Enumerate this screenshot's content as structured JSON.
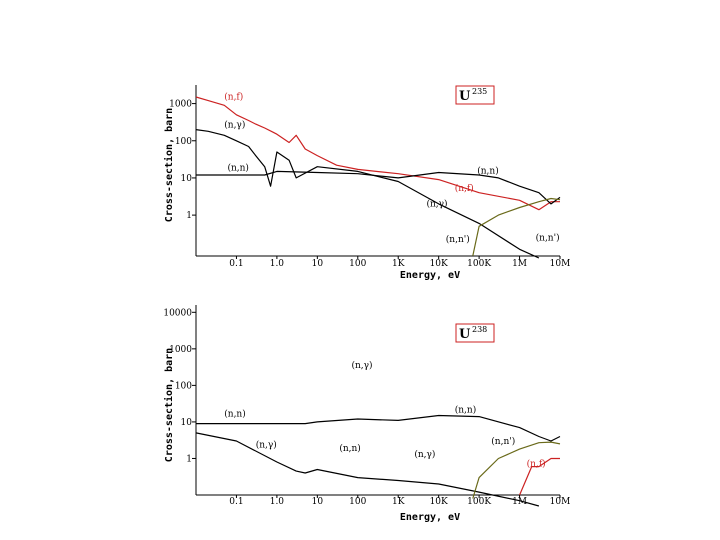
{
  "chart_data": [
    {
      "type": "line",
      "isotope": "U",
      "isotope_mass": "235",
      "xlabel": "Energy, eV",
      "ylabel": "Cross-section, barn",
      "x_scale": "log",
      "y_scale": "log",
      "x_ticks": [
        "0.1",
        "1.0",
        "10",
        "100",
        "1K",
        "10K",
        "100K",
        "1M",
        "10M"
      ],
      "y_ticks": [
        "1000",
        "100",
        "10",
        "1"
      ],
      "annotations": [
        {
          "text": "(n,f)",
          "color": "#cc2222",
          "e": 0.05,
          "s": 1300
        },
        {
          "text": "(n,γ)",
          "color": "#000000",
          "e": 0.05,
          "s": 230
        },
        {
          "text": "(n,n)",
          "color": "#000000",
          "e": 0.06,
          "s": 16
        },
        {
          "text": "(n,n)",
          "color": "#000000",
          "e": 90000,
          "s": 13
        },
        {
          "text": "(n,f)",
          "color": "#cc2222",
          "e": 25000,
          "s": 4.5
        },
        {
          "text": "(n,γ)",
          "color": "#000000",
          "e": 5000,
          "s": 1.7
        },
        {
          "text": "(n,n')",
          "color": "#000000",
          "e": 15000,
          "s": 0.19
        },
        {
          "text": "(n,n')",
          "color": "#000000",
          "e": 2500000,
          "s": 0.21
        }
      ],
      "series": [
        {
          "color": "#cc2222",
          "points": [
            [
              0.01,
              1500
            ],
            [
              0.02,
              1200
            ],
            [
              0.05,
              900
            ],
            [
              0.1,
              500
            ],
            [
              0.2,
              350
            ],
            [
              0.3,
              280
            ],
            [
              0.5,
              220
            ],
            [
              0.8,
              170
            ],
            [
              1,
              150
            ],
            [
              2,
              90
            ],
            [
              3,
              140
            ],
            [
              5,
              60
            ],
            [
              10,
              40
            ],
            [
              30,
              22
            ],
            [
              100,
              17
            ],
            [
              1000,
              13
            ],
            [
              10000,
              9
            ],
            [
              100000,
              4
            ],
            [
              1000000,
              2.5
            ],
            [
              3000000,
              1.4
            ],
            [
              6000000,
              2.3
            ],
            [
              10000000,
              2.3
            ]
          ]
        },
        {
          "color": "#000000",
          "points": [
            [
              0.01,
              200
            ],
            [
              0.02,
              180
            ],
            [
              0.05,
              140
            ],
            [
              0.1,
              100
            ],
            [
              0.2,
              70
            ],
            [
              0.3,
              40
            ],
            [
              0.5,
              20
            ],
            [
              0.7,
              6
            ],
            [
              1,
              50
            ],
            [
              2,
              30
            ],
            [
              3,
              10
            ],
            [
              10,
              20
            ],
            [
              100,
              15
            ],
            [
              1000,
              8
            ],
            [
              10000,
              2
            ],
            [
              100000,
              0.6
            ],
            [
              1000000,
              0.12
            ],
            [
              3000000,
              0.07
            ]
          ]
        },
        {
          "color": "#000000",
          "points": [
            [
              0.01,
              12
            ],
            [
              0.5,
              12
            ],
            [
              1,
              15
            ],
            [
              10,
              14
            ],
            [
              100,
              13
            ],
            [
              1000,
              10
            ],
            [
              10000,
              14
            ],
            [
              100000,
              12
            ],
            [
              300000,
              10
            ],
            [
              1000000,
              6
            ],
            [
              3000000,
              4
            ],
            [
              6000000,
              2
            ],
            [
              10000000,
              3
            ]
          ]
        },
        {
          "color": "#6a6a1a",
          "points": [
            [
              70000,
              0.08
            ],
            [
              100000,
              0.5
            ],
            [
              300000,
              1
            ],
            [
              1000000,
              1.6
            ],
            [
              3000000,
              2.3
            ],
            [
              6000000,
              2.8
            ],
            [
              10000000,
              2.6
            ]
          ]
        }
      ]
    },
    {
      "type": "line",
      "isotope": "U",
      "isotope_mass": "238",
      "xlabel": "Energy, eV",
      "ylabel": "Cross-section, barn",
      "x_scale": "log",
      "y_scale": "log",
      "x_ticks": [
        "0.1",
        "1.0",
        "10",
        "100",
        "1K",
        "10K",
        "100K",
        "1M",
        "10M"
      ],
      "y_ticks": [
        "10000",
        "1000",
        "100",
        "10",
        "1"
      ],
      "annotations": [
        {
          "text": "(n,γ)",
          "color": "#000000",
          "e": 70,
          "s": 300
        },
        {
          "text": "(n,n)",
          "color": "#000000",
          "e": 0.05,
          "s": 14
        },
        {
          "text": "(n,n)",
          "color": "#000000",
          "e": 25000,
          "s": 18
        },
        {
          "text": "(n,γ)",
          "color": "#000000",
          "e": 0.3,
          "s": 2
        },
        {
          "text": "(n,n)",
          "color": "#000000",
          "e": 35,
          "s": 1.6
        },
        {
          "text": "(n,γ)",
          "color": "#000000",
          "e": 2500,
          "s": 1.1
        },
        {
          "text": "(n,n')",
          "color": "#000000",
          "e": 200000,
          "s": 2.5
        },
        {
          "text": "(n,f)",
          "color": "#cc2222",
          "e": 1500000,
          "s": 0.6
        }
      ],
      "series": [
        {
          "color": "#000000",
          "points": [
            [
              0.01,
              9
            ],
            [
              1,
              9
            ],
            [
              5,
              9
            ],
            [
              10,
              10
            ],
            [
              100,
              12
            ],
            [
              1000,
              11
            ],
            [
              10000,
              15
            ],
            [
              100000,
              14
            ],
            [
              1000000,
              7
            ],
            [
              3000000,
              4
            ],
            [
              6000000,
              3
            ],
            [
              10000000,
              4
            ]
          ]
        },
        {
          "color": "#000000",
          "points": [
            [
              0.01,
              5
            ],
            [
              0.1,
              3
            ],
            [
              1,
              0.8
            ],
            [
              3,
              0.45
            ],
            [
              5,
              0.4
            ],
            [
              10,
              0.5
            ],
            [
              100,
              0.3
            ],
            [
              1000,
              0.25
            ],
            [
              10000,
              0.2
            ],
            [
              100000,
              0.12
            ],
            [
              1000000,
              0.07
            ],
            [
              3000000,
              0.05
            ]
          ]
        },
        {
          "color": "#6a6a1a",
          "points": [
            [
              70000,
              0.08
            ],
            [
              100000,
              0.3
            ],
            [
              300000,
              1
            ],
            [
              1000000,
              1.8
            ],
            [
              3000000,
              2.7
            ],
            [
              6000000,
              2.8
            ],
            [
              10000000,
              2.5
            ]
          ]
        },
        {
          "color": "#cc2222",
          "points": [
            [
              1000000,
              0.1
            ],
            [
              2000000,
              0.6
            ],
            [
              3000000,
              0.6
            ],
            [
              6000000,
              1
            ],
            [
              10000000,
              1
            ]
          ]
        }
      ]
    }
  ]
}
